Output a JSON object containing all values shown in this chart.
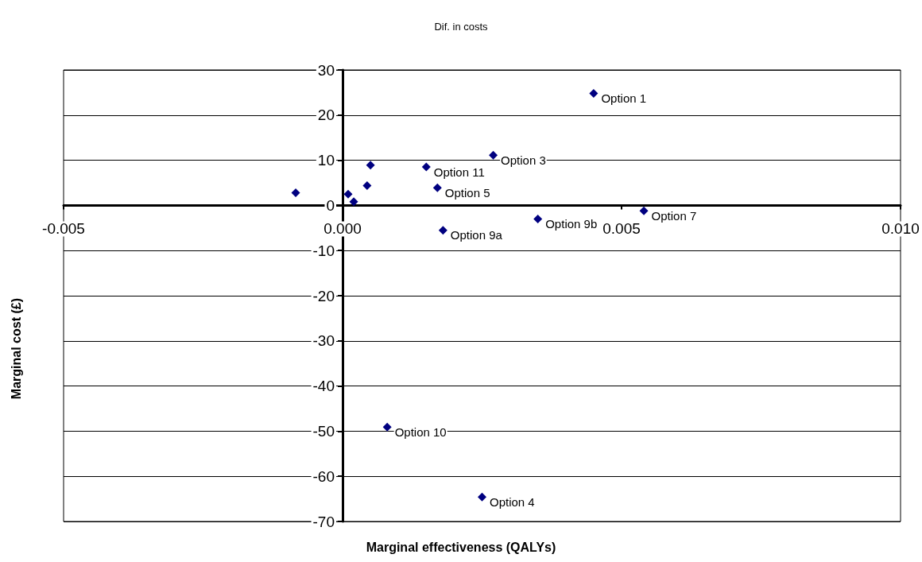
{
  "chart_data": {
    "type": "scatter",
    "title": "Dif. in costs",
    "xlabel": "Marginal effectiveness (QALYs)",
    "ylabel": "Marginal cost (£)",
    "x": [
      -0.00084,
      0.0001,
      0.0002,
      0.00044,
      0.0005,
      0.0015,
      0.0017,
      0.0018,
      0.0027,
      0.0035,
      0.0045,
      0.0054,
      0.0008,
      0.0025
    ],
    "series": [
      {
        "color": "#000080",
        "values": [
          2.8,
          2.5,
          0.8,
          4.4,
          8.9,
          8.5,
          3.9,
          -5.5,
          11.1,
          -3.0,
          24.8,
          -1.2,
          -49.1,
          -64.6
        ],
        "value_labels": [
          null,
          null,
          null,
          null,
          null,
          "Option 11",
          "Option 5",
          "Option 9a",
          "Option 3",
          "Option 9b",
          "Option 1",
          "Option 7",
          "Option 10",
          "Option 4"
        ]
      }
    ],
    "xlim": [
      -0.005,
      0.01
    ],
    "xticks": [
      {
        "value": -0.005,
        "label": "-0.005"
      },
      {
        "value": 0,
        "label": "0.000"
      },
      {
        "value": 0.005,
        "label": "0.005"
      },
      {
        "value": 0.01,
        "label": "0.010"
      }
    ],
    "ylim": [
      -70,
      30
    ],
    "yticks": [
      -70,
      -60,
      -50,
      -40,
      -30,
      -20,
      -10,
      0,
      10,
      20,
      30
    ],
    "grid": "y",
    "marker": "diamond"
  }
}
